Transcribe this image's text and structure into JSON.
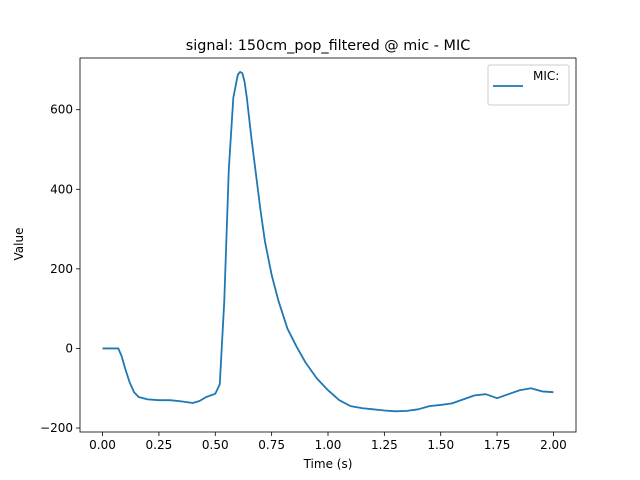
{
  "chart_data": {
    "type": "line",
    "title": "signal: 150cm_pop_filtered @ mic - MIC",
    "xlabel": "Time (s)",
    "ylabel": "Value",
    "xlim": [
      -0.1,
      2.1
    ],
    "ylim": [
      -210,
      730
    ],
    "x_ticks": [
      0.0,
      0.25,
      0.5,
      0.75,
      1.0,
      1.25,
      1.5,
      1.75,
      2.0
    ],
    "x_tick_labels": [
      "0.00",
      "0.25",
      "0.50",
      "0.75",
      "1.00",
      "1.25",
      "1.50",
      "1.75",
      "2.00"
    ],
    "y_ticks": [
      -200,
      0,
      200,
      400,
      600
    ],
    "y_tick_labels": [
      "−200",
      "0",
      "200",
      "400",
      "600"
    ],
    "grid": false,
    "legend_position": "top-right",
    "color": "#1f77b4",
    "series": [
      {
        "name": "MIC:",
        "x": [
          0.0,
          0.03,
          0.07,
          0.085,
          0.1,
          0.12,
          0.14,
          0.16,
          0.2,
          0.25,
          0.3,
          0.35,
          0.4,
          0.43,
          0.46,
          0.5,
          0.52,
          0.54,
          0.56,
          0.58,
          0.6,
          0.61,
          0.62,
          0.63,
          0.64,
          0.66,
          0.68,
          0.7,
          0.72,
          0.75,
          0.78,
          0.82,
          0.86,
          0.9,
          0.95,
          1.0,
          1.05,
          1.1,
          1.15,
          1.2,
          1.25,
          1.3,
          1.35,
          1.4,
          1.45,
          1.5,
          1.55,
          1.6,
          1.65,
          1.7,
          1.75,
          1.8,
          1.85,
          1.9,
          1.95,
          2.0
        ],
        "y": [
          0,
          0,
          0,
          -20,
          -50,
          -85,
          -110,
          -122,
          -128,
          -130,
          -130,
          -133,
          -137,
          -132,
          -122,
          -114,
          -90,
          120,
          450,
          630,
          688,
          695,
          692,
          670,
          630,
          530,
          440,
          350,
          270,
          185,
          120,
          50,
          5,
          -35,
          -75,
          -105,
          -130,
          -145,
          -150,
          -153,
          -156,
          -158,
          -157,
          -153,
          -145,
          -142,
          -138,
          -128,
          -118,
          -115,
          -125,
          -115,
          -105,
          -100,
          -108,
          -110
        ]
      }
    ]
  }
}
